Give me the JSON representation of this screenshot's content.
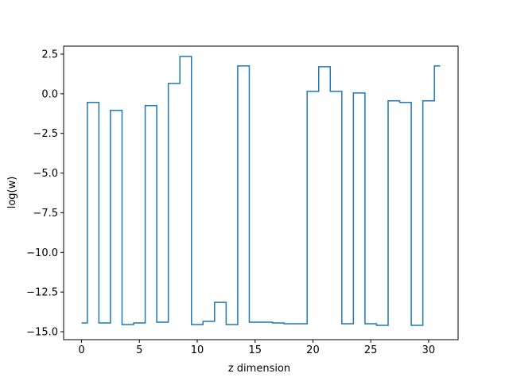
{
  "chart_data": {
    "type": "line",
    "drawstyle": "steps-mid",
    "title": "",
    "xlabel": "z dimension",
    "ylabel": "log(w)",
    "xlim": [
      -1.55,
      32.55
    ],
    "ylim": [
      -15.5,
      3.0
    ],
    "xticks": [
      0,
      5,
      10,
      15,
      20,
      25,
      30
    ],
    "xtick_labels": [
      "0",
      "5",
      "10",
      "15",
      "20",
      "25",
      "30"
    ],
    "yticks": [
      2.5,
      0.0,
      -2.5,
      -5.0,
      -7.5,
      -10.0,
      -12.5,
      -15.0
    ],
    "ytick_labels": [
      "2.5",
      "0.0",
      "−2.5",
      "−5.0",
      "−7.5",
      "−10.0",
      "−12.5",
      "−15.0"
    ],
    "grid": false,
    "series": [
      {
        "color": "#1f77b4",
        "x": [
          0,
          1,
          2,
          3,
          4,
          5,
          6,
          7,
          8,
          9,
          10,
          11,
          12,
          13,
          14,
          15,
          16,
          17,
          18,
          19,
          20,
          21,
          22,
          23,
          24,
          25,
          26,
          27,
          28,
          29,
          30,
          31
        ],
        "values": [
          -14.45,
          -0.55,
          -14.45,
          -1.05,
          -14.55,
          -14.45,
          -0.75,
          -14.4,
          0.65,
          2.35,
          -14.55,
          -14.35,
          -13.15,
          -14.55,
          1.75,
          -14.4,
          -14.4,
          -14.45,
          -14.5,
          -14.5,
          0.15,
          1.7,
          0.15,
          -14.5,
          0.05,
          -14.5,
          -14.6,
          -0.45,
          -0.55,
          -14.6,
          -0.45,
          1.75
        ]
      }
    ]
  }
}
